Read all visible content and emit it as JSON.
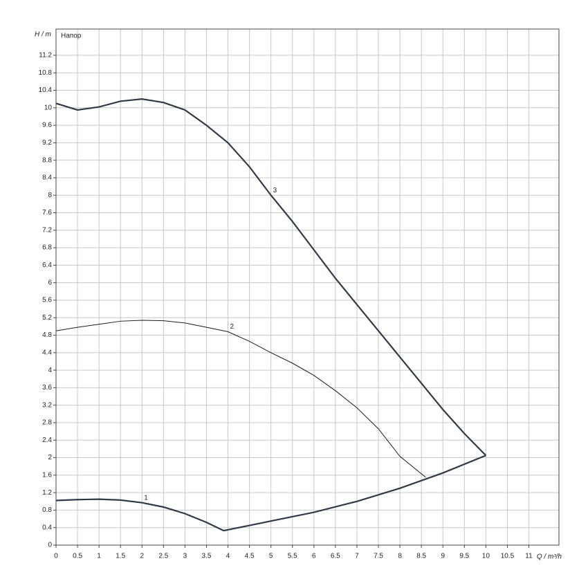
{
  "chart_data": {
    "type": "line",
    "title": "Напор",
    "y_label": "H / m",
    "x_label": "Q / m³/h",
    "xlim": [
      0,
      11.7
    ],
    "ylim": [
      0,
      11.8
    ],
    "xticks": [
      0,
      0.5,
      1,
      1.5,
      2,
      2.5,
      3,
      3.5,
      4,
      4.5,
      5,
      5.5,
      6,
      6.5,
      7,
      7.5,
      8,
      8.5,
      9,
      9.5,
      10,
      10.5,
      11
    ],
    "yticks": [
      0,
      0.4,
      0.8,
      1.2,
      1.6,
      2,
      2.4,
      2.8,
      3.2,
      3.6,
      4,
      4.4,
      4.8,
      5.2,
      5.6,
      6,
      6.4,
      6.8,
      7.2,
      7.6,
      8,
      8.4,
      8.8,
      9.2,
      9.6,
      10,
      10.4,
      10.8,
      11.2
    ],
    "grid": true,
    "series": [
      {
        "name": "1",
        "color": "#2e3a48",
        "x": [
          0,
          0.5,
          1,
          1.5,
          2,
          2.5,
          3,
          3.5,
          3.9,
          4.5,
          5,
          6,
          7,
          8,
          9,
          10
        ],
        "values": [
          1.02,
          1.04,
          1.05,
          1.03,
          0.97,
          0.87,
          0.72,
          0.52,
          0.33,
          0.45,
          0.55,
          0.75,
          1.0,
          1.3,
          1.65,
          2.05
        ]
      },
      {
        "name": "2",
        "color": "#1a1a1a",
        "x": [
          0,
          0.5,
          1,
          1.5,
          2,
          2.5,
          3,
          3.5,
          4,
          4.5,
          5,
          5.5,
          6,
          6.5,
          7,
          7.5,
          8,
          8.6
        ],
        "values": [
          4.9,
          4.98,
          5.05,
          5.12,
          5.14,
          5.13,
          5.08,
          4.98,
          4.88,
          4.66,
          4.4,
          4.16,
          3.88,
          3.53,
          3.14,
          2.66,
          2.03,
          1.55
        ]
      },
      {
        "name": "3",
        "color": "#2e3a48",
        "x": [
          0,
          0.5,
          1,
          1.5,
          2,
          2.5,
          3,
          3.5,
          4,
          4.5,
          5,
          5.5,
          6,
          6.5,
          7,
          7.5,
          8,
          8.5,
          9,
          9.5,
          10
        ],
        "values": [
          10.1,
          9.95,
          10.02,
          10.15,
          10.2,
          10.12,
          9.95,
          9.6,
          9.2,
          8.65,
          8.0,
          7.4,
          6.75,
          6.1,
          5.5,
          4.9,
          4.3,
          3.7,
          3.1,
          2.55,
          2.05
        ]
      }
    ]
  }
}
